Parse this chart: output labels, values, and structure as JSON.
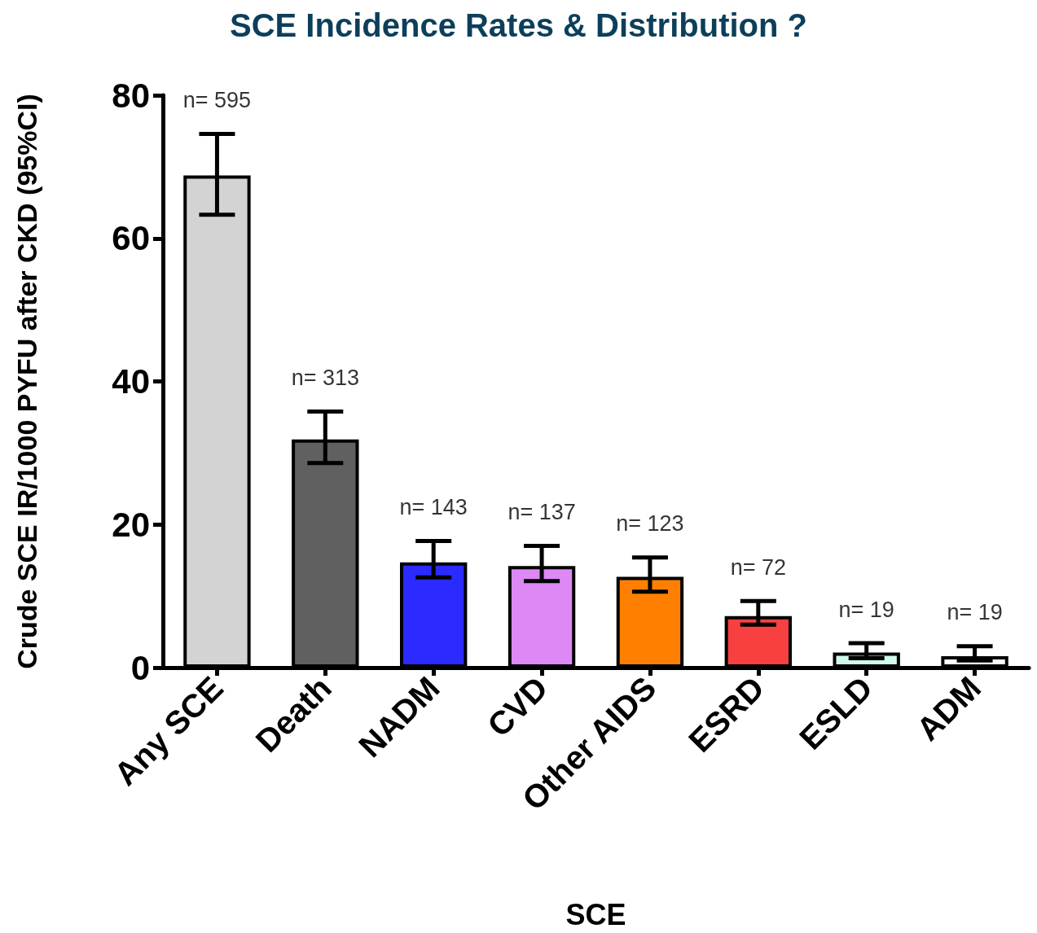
{
  "chart_data": {
    "type": "bar",
    "title": "SCE Incidence Rates & Distribution ?",
    "xlabel": "SCE",
    "ylabel": "Crude SCE IR/1000 PYFU after CKD (95%CI)",
    "categories": [
      "Any SCE",
      "Death",
      "NADM",
      "CVD",
      "Other AIDS",
      "ESRD",
      "ESLD",
      "ADM"
    ],
    "values": [
      68.8,
      31.9,
      14.7,
      14.2,
      12.7,
      7.2,
      2.1,
      1.6
    ],
    "colors": [
      "#d3d3d3",
      "#606060",
      "#2b2bff",
      "#dd88f5",
      "#ff8000",
      "#f84040",
      "#d0f8ec",
      "#ffffff"
    ],
    "errors": [
      [
        63.3,
        74.6
      ],
      [
        28.6,
        35.8
      ],
      [
        12.6,
        17.7
      ],
      [
        12.1,
        17.0
      ],
      [
        10.6,
        15.4
      ],
      [
        6.0,
        9.3
      ],
      [
        1.3,
        3.4
      ],
      [
        1.0,
        3.0
      ]
    ],
    "annotations": [
      "n= 595",
      "n= 313",
      "n= 143",
      "n= 137",
      "n= 123",
      "n= 72",
      "n= 19",
      "n= 19"
    ],
    "ylim": [
      0,
      80
    ],
    "yticks": [
      0,
      20,
      40,
      60,
      80
    ],
    "grid": false
  }
}
